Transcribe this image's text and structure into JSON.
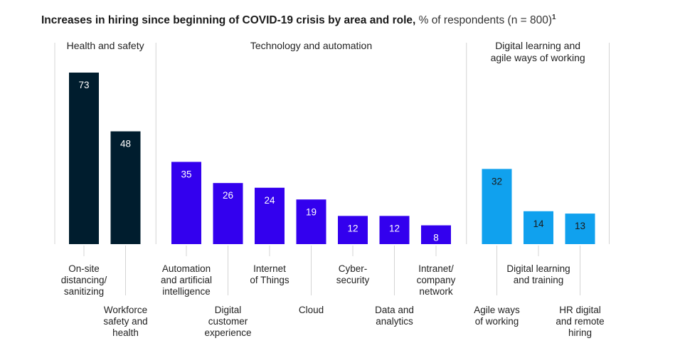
{
  "title": {
    "bold": "Increases in hiring since beginning of COVID-19 crisis by area and role,",
    "light": " % of respondents (n = 800)",
    "footnote": "1"
  },
  "colors": {
    "health": "#001d2e",
    "technology": "#3300ee",
    "digital": "#10a1ee",
    "label_on_dark": "#ffffff",
    "label_on_light": "#1a1a1a"
  },
  "chart_data": {
    "type": "bar",
    "title": "Increases in hiring since beginning of COVID-19 crisis by area and role",
    "ylabel": "% of respondents (n = 800)",
    "ylim": [
      0,
      80
    ],
    "groups": [
      {
        "name": "Health and safety",
        "name_lines": [
          "Health and safety"
        ],
        "color_key": "health",
        "categories": [
          {
            "lines": [
              "On-site",
              "distancing/",
              "sanitizing"
            ],
            "value": 73,
            "row": "upper"
          },
          {
            "lines": [
              "Workforce",
              "safety and",
              "health"
            ],
            "value": 48,
            "row": "lower"
          }
        ]
      },
      {
        "name": "Technology and automation",
        "name_lines": [
          "Technology and automation"
        ],
        "color_key": "technology",
        "categories": [
          {
            "lines": [
              "Automation",
              "and artificial",
              "intelligence"
            ],
            "value": 35,
            "row": "upper"
          },
          {
            "lines": [
              "Digital",
              "customer",
              "experience"
            ],
            "value": 26,
            "row": "lower"
          },
          {
            "lines": [
              "Internet",
              "of Things"
            ],
            "value": 24,
            "row": "upper"
          },
          {
            "lines": [
              "Cloud"
            ],
            "value": 19,
            "row": "lower"
          },
          {
            "lines": [
              "Cyber-",
              "security"
            ],
            "value": 12,
            "row": "upper"
          },
          {
            "lines": [
              "Data and",
              "analytics"
            ],
            "value": 12,
            "row": "lower"
          },
          {
            "lines": [
              "Intranet/",
              "company",
              "network"
            ],
            "value": 8,
            "row": "upper"
          }
        ]
      },
      {
        "name": "Digital learning and agile ways of working",
        "name_lines": [
          "Digital learning and",
          "agile ways of working"
        ],
        "color_key": "digital",
        "categories": [
          {
            "lines": [
              "Agile ways",
              "of working"
            ],
            "value": 32,
            "row": "lower"
          },
          {
            "lines": [
              "Digital learning",
              "and training"
            ],
            "value": 14,
            "row": "upper"
          },
          {
            "lines": [
              "HR digital",
              "and remote",
              "hiring"
            ],
            "value": 13,
            "row": "lower"
          }
        ]
      }
    ]
  }
}
